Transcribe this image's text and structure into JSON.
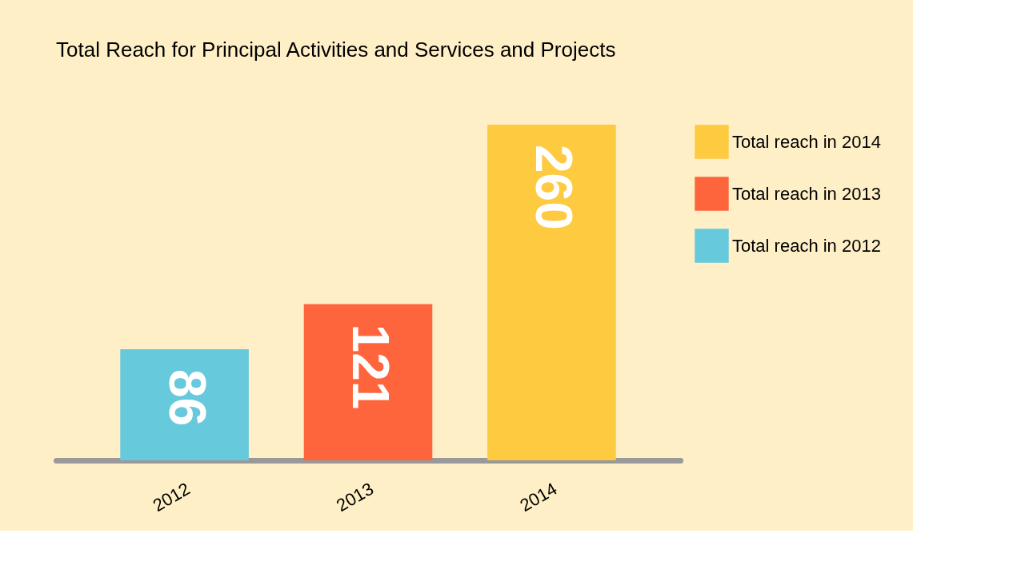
{
  "chart_data": {
    "type": "bar",
    "title": "Total Reach for Principal Activities and Services and Projects",
    "categories": [
      "2012",
      "2013",
      "2014"
    ],
    "series": [
      {
        "name": "Total reach in 2014",
        "color": "#fdca40",
        "values": [
          null,
          null,
          260
        ]
      },
      {
        "name": "Total reach in 2013",
        "color": "#ff653d",
        "values": [
          null,
          121,
          null
        ]
      },
      {
        "name": "Total reach in 2012",
        "color": "#66c9dc",
        "values": [
          86,
          null,
          null
        ]
      }
    ],
    "data_labels": true,
    "legend": "right"
  }
}
